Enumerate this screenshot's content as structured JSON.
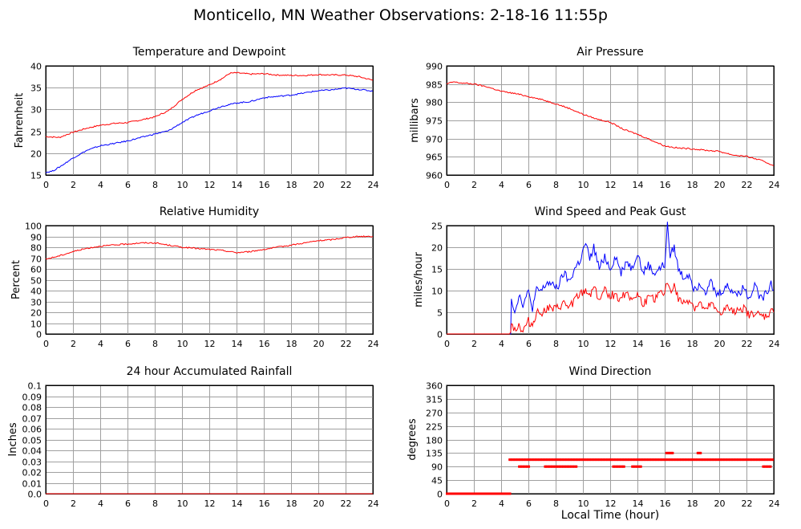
{
  "title": "Monticello, MN Weather Observations: 2-18-16 11:55p",
  "shared_xlabel": "Local Time (hour)",
  "colors": {
    "red": "#ff0000",
    "blue": "#0000ff",
    "grid": "#a0a0a0"
  },
  "chart_data": [
    {
      "id": "temp",
      "type": "line",
      "title": "Temperature and Dewpoint",
      "ylabel": "Fahrenheit",
      "xlim": [
        0,
        24
      ],
      "ylim": [
        15,
        40
      ],
      "x_ticks": [
        0,
        2,
        4,
        6,
        8,
        10,
        12,
        14,
        16,
        18,
        20,
        22,
        24
      ],
      "y_ticks": [
        15,
        20,
        25,
        30,
        35,
        40
      ],
      "grid": true,
      "series": [
        {
          "color": "#ff0000",
          "x": [
            0,
            1,
            2,
            3,
            4,
            5,
            6,
            7,
            8,
            9,
            10,
            11,
            12,
            13,
            13.5,
            14,
            15,
            16,
            17,
            18,
            19,
            20,
            21,
            22,
            23,
            24
          ],
          "values": [
            23.8,
            23.6,
            24.8,
            25.7,
            26.4,
            26.8,
            27.0,
            27.6,
            28.3,
            29.7,
            32.3,
            34.4,
            35.6,
            37.2,
            38.3,
            38.4,
            38.1,
            38.2,
            37.9,
            37.8,
            37.8,
            38.0,
            37.9,
            37.9,
            37.5,
            36.7
          ]
        },
        {
          "color": "#0000ff",
          "x": [
            0,
            0.5,
            1,
            2,
            3,
            4,
            5,
            6,
            7,
            8,
            9,
            10,
            11,
            12,
            13,
            14,
            15,
            16,
            17,
            18,
            19,
            20,
            21,
            22,
            23,
            24
          ],
          "values": [
            15.6,
            15.9,
            16.8,
            18.9,
            20.6,
            21.7,
            22.2,
            22.8,
            23.6,
            24.4,
            25.1,
            27.0,
            28.6,
            29.7,
            30.8,
            31.5,
            31.8,
            32.7,
            33.0,
            33.3,
            33.8,
            34.3,
            34.5,
            34.9,
            34.6,
            34.2
          ]
        }
      ]
    },
    {
      "id": "pressure",
      "type": "line",
      "title": "Air Pressure",
      "ylabel": "millibars",
      "xlim": [
        0,
        24
      ],
      "ylim": [
        960,
        990
      ],
      "x_ticks": [
        0,
        2,
        4,
        6,
        8,
        10,
        12,
        14,
        16,
        18,
        20,
        22,
        24
      ],
      "y_ticks": [
        960,
        965,
        970,
        975,
        980,
        985,
        990
      ],
      "grid": true,
      "series": [
        {
          "color": "#ff0000",
          "x": [
            0,
            0.5,
            1,
            2,
            3,
            4,
            5,
            6,
            7,
            8,
            9,
            10,
            11,
            12,
            13,
            14,
            15,
            16,
            17,
            18,
            19,
            20,
            21,
            22,
            23,
            24
          ],
          "values": [
            985.0,
            985.6,
            985.3,
            985.0,
            984.2,
            983.0,
            982.4,
            981.6,
            980.7,
            979.6,
            978.3,
            976.7,
            975.4,
            974.5,
            972.5,
            971.2,
            969.6,
            968.0,
            967.4,
            967.2,
            966.8,
            966.5,
            965.5,
            965.1,
            964.1,
            962.6
          ]
        }
      ]
    },
    {
      "id": "humidity",
      "type": "line",
      "title": "Relative Humidity",
      "ylabel": "Percent",
      "xlim": [
        0,
        24
      ],
      "ylim": [
        0,
        100
      ],
      "x_ticks": [
        0,
        2,
        4,
        6,
        8,
        10,
        12,
        14,
        16,
        18,
        20,
        22,
        24
      ],
      "y_ticks": [
        0,
        10,
        20,
        30,
        40,
        50,
        60,
        70,
        80,
        90,
        100
      ],
      "grid": true,
      "series": [
        {
          "color": "#ff0000",
          "x": [
            0,
            1,
            2,
            3,
            4,
            5,
            6,
            7,
            8,
            9,
            10,
            11,
            12,
            13,
            14,
            15,
            16,
            17,
            18,
            19,
            20,
            21,
            22,
            23,
            24
          ],
          "values": [
            69,
            72,
            76,
            79,
            81,
            82,
            83,
            84,
            84,
            82,
            80,
            79,
            78,
            77,
            75,
            76,
            78,
            80,
            82,
            84,
            86,
            87,
            89,
            90,
            90
          ]
        }
      ]
    },
    {
      "id": "wind",
      "type": "line",
      "title": "Wind Speed and Peak Gust",
      "ylabel": "miles/hour",
      "xlim": [
        0,
        24
      ],
      "ylim": [
        0,
        25
      ],
      "x_ticks": [
        0,
        2,
        4,
        6,
        8,
        10,
        12,
        14,
        16,
        18,
        20,
        22,
        24
      ],
      "y_ticks": [
        0,
        5,
        10,
        15,
        20,
        25
      ],
      "grid": true,
      "series": [
        {
          "color": "#0000ff",
          "x": [
            0,
            4.7,
            4.75,
            5.0,
            5.3,
            5.6,
            6.0,
            6.3,
            6.6,
            7.0,
            7.4,
            7.8,
            8.2,
            8.6,
            9.0,
            9.4,
            9.8,
            10.2,
            10.5,
            10.8,
            11.2,
            11.6,
            12.0,
            12.4,
            12.8,
            13.2,
            13.6,
            14.0,
            14.4,
            14.8,
            15.2,
            15.6,
            16.0,
            16.2,
            16.4,
            16.7,
            17.0,
            17.4,
            17.8,
            18.2,
            18.6,
            19.0,
            19.4,
            19.8,
            20.2,
            20.6,
            21.0,
            21.4,
            21.8,
            22.2,
            22.6,
            23.0,
            23.4,
            23.8,
            24.0
          ],
          "values": [
            0,
            0,
            8.5,
            5,
            9,
            7,
            9.5,
            6,
            10,
            10,
            12,
            11,
            11,
            14,
            12,
            15,
            17,
            21,
            17,
            20,
            15,
            18,
            15,
            18,
            14,
            17,
            15,
            19,
            14,
            16,
            14,
            15,
            16,
            25,
            18,
            20,
            15,
            13,
            14,
            10,
            12,
            10,
            12,
            9,
            10,
            11,
            10,
            9,
            11,
            8,
            12,
            8,
            9,
            12,
            10
          ]
        },
        {
          "color": "#ff0000",
          "x": [
            0,
            4.7,
            4.75,
            5.0,
            5.3,
            5.6,
            6.0,
            6.3,
            6.6,
            7.0,
            7.4,
            7.8,
            8.2,
            8.6,
            9.0,
            9.4,
            9.8,
            10.2,
            10.5,
            10.8,
            11.2,
            11.6,
            12.0,
            12.4,
            12.8,
            13.2,
            13.6,
            14.0,
            14.4,
            14.8,
            15.2,
            15.6,
            16.0,
            16.2,
            16.4,
            16.7,
            17.0,
            17.4,
            17.8,
            18.2,
            18.6,
            19.0,
            19.4,
            19.8,
            20.2,
            20.6,
            21.0,
            21.4,
            21.8,
            22.2,
            22.6,
            23.0,
            23.4,
            23.8,
            24.0
          ],
          "values": [
            0,
            0,
            3,
            1,
            2,
            0.5,
            3,
            2,
            5,
            5,
            6,
            5.5,
            6,
            7,
            6,
            8,
            9,
            10,
            9,
            11,
            8,
            10,
            9,
            9,
            8,
            10,
            8,
            9,
            7,
            8,
            8,
            9,
            10,
            12,
            10,
            11,
            8,
            7,
            8,
            6,
            7,
            5,
            7,
            5,
            5,
            6,
            5,
            6,
            6,
            4,
            5,
            4,
            4,
            5,
            5
          ]
        }
      ]
    },
    {
      "id": "rain",
      "type": "line",
      "title": "24 hour Accumulated Rainfall",
      "ylabel": "Inches",
      "xlim": [
        0,
        24
      ],
      "ylim": [
        0,
        0.1
      ],
      "x_ticks": [
        0,
        2,
        4,
        6,
        8,
        10,
        12,
        14,
        16,
        18,
        20,
        22,
        24
      ],
      "y_ticks": [
        0.0,
        0.01,
        0.02,
        0.03,
        0.04,
        0.05,
        0.06,
        0.07,
        0.08,
        0.09,
        0.1
      ],
      "y_tick_labels": [
        "0.0",
        "0.01",
        "0.02",
        "0.03",
        "0.04",
        "0.05",
        "0.06",
        "0.07",
        "0.08",
        "0.09",
        "0.1"
      ],
      "grid": true,
      "series": [
        {
          "color": "#ff0000",
          "x": [
            0,
            24
          ],
          "values": [
            0,
            0
          ]
        }
      ]
    },
    {
      "id": "direction",
      "type": "scatter",
      "title": "Wind Direction",
      "ylabel": "degrees",
      "xlim": [
        0,
        24
      ],
      "ylim": [
        0,
        360
      ],
      "x_ticks": [
        0,
        2,
        4,
        6,
        8,
        10,
        12,
        14,
        16,
        18,
        20,
        22,
        24
      ],
      "y_ticks": [
        0,
        45,
        90,
        135,
        180,
        225,
        270,
        315,
        360
      ],
      "grid": true,
      "series": [
        {
          "color": "#ff0000",
          "segments": [
            {
              "from": 0,
              "to": 4.7,
              "value": 0
            },
            {
              "from": 4.6,
              "to": 24,
              "value": 113
            },
            {
              "from": 5.3,
              "to": 6.1,
              "value": 90
            },
            {
              "from": 7.2,
              "to": 9.6,
              "value": 90
            },
            {
              "from": 12.2,
              "to": 13.1,
              "value": 90
            },
            {
              "from": 13.6,
              "to": 14.3,
              "value": 90
            },
            {
              "from": 16.1,
              "to": 16.6,
              "value": 135
            },
            {
              "from": 18.4,
              "to": 18.7,
              "value": 135
            },
            {
              "from": 23.2,
              "to": 23.8,
              "value": 90
            }
          ]
        }
      ]
    }
  ]
}
